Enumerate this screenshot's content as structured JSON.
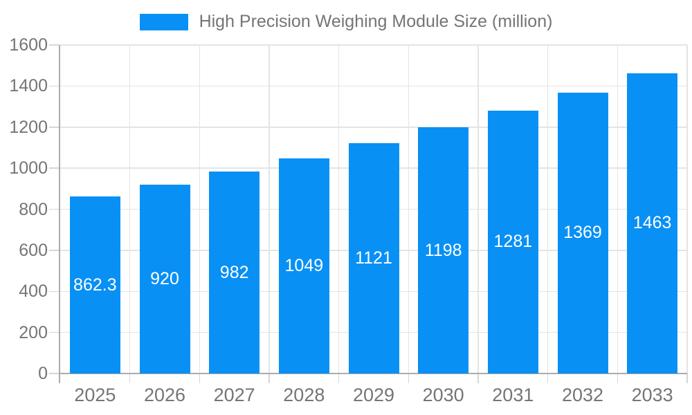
{
  "chart_data": {
    "type": "bar",
    "title": "High Precision Weighing Module Size (million)",
    "legend": {
      "label": "High Precision Weighing Module Size (million)",
      "position": "top-center"
    },
    "categories": [
      "2025",
      "2026",
      "2027",
      "2028",
      "2029",
      "2030",
      "2031",
      "2032",
      "2033"
    ],
    "series": [
      {
        "name": "High Precision Weighing Module Size (million)",
        "values": [
          862.3,
          920,
          982,
          1049,
          1121,
          1198,
          1281,
          1369,
          1463
        ],
        "labels": [
          "862.3",
          "920",
          "982",
          "1049",
          "1121",
          "1198",
          "1281",
          "1369",
          "1463"
        ]
      }
    ],
    "xlabel": "",
    "ylabel": "",
    "ylim": [
      0,
      1600
    ],
    "yticks": [
      0,
      200,
      400,
      600,
      800,
      1000,
      1200,
      1400,
      1600
    ],
    "grid": true,
    "bar_label_position": "inside-center"
  },
  "colors": {
    "bar": "#0890F5",
    "bar_label_text": "#FFFFFF",
    "axis_text": "#757575",
    "grid_line": "#E4E4E4",
    "axis_line": "#ABABAB",
    "tick_line": "#D6D6D6",
    "background": "#FFFFFF"
  }
}
